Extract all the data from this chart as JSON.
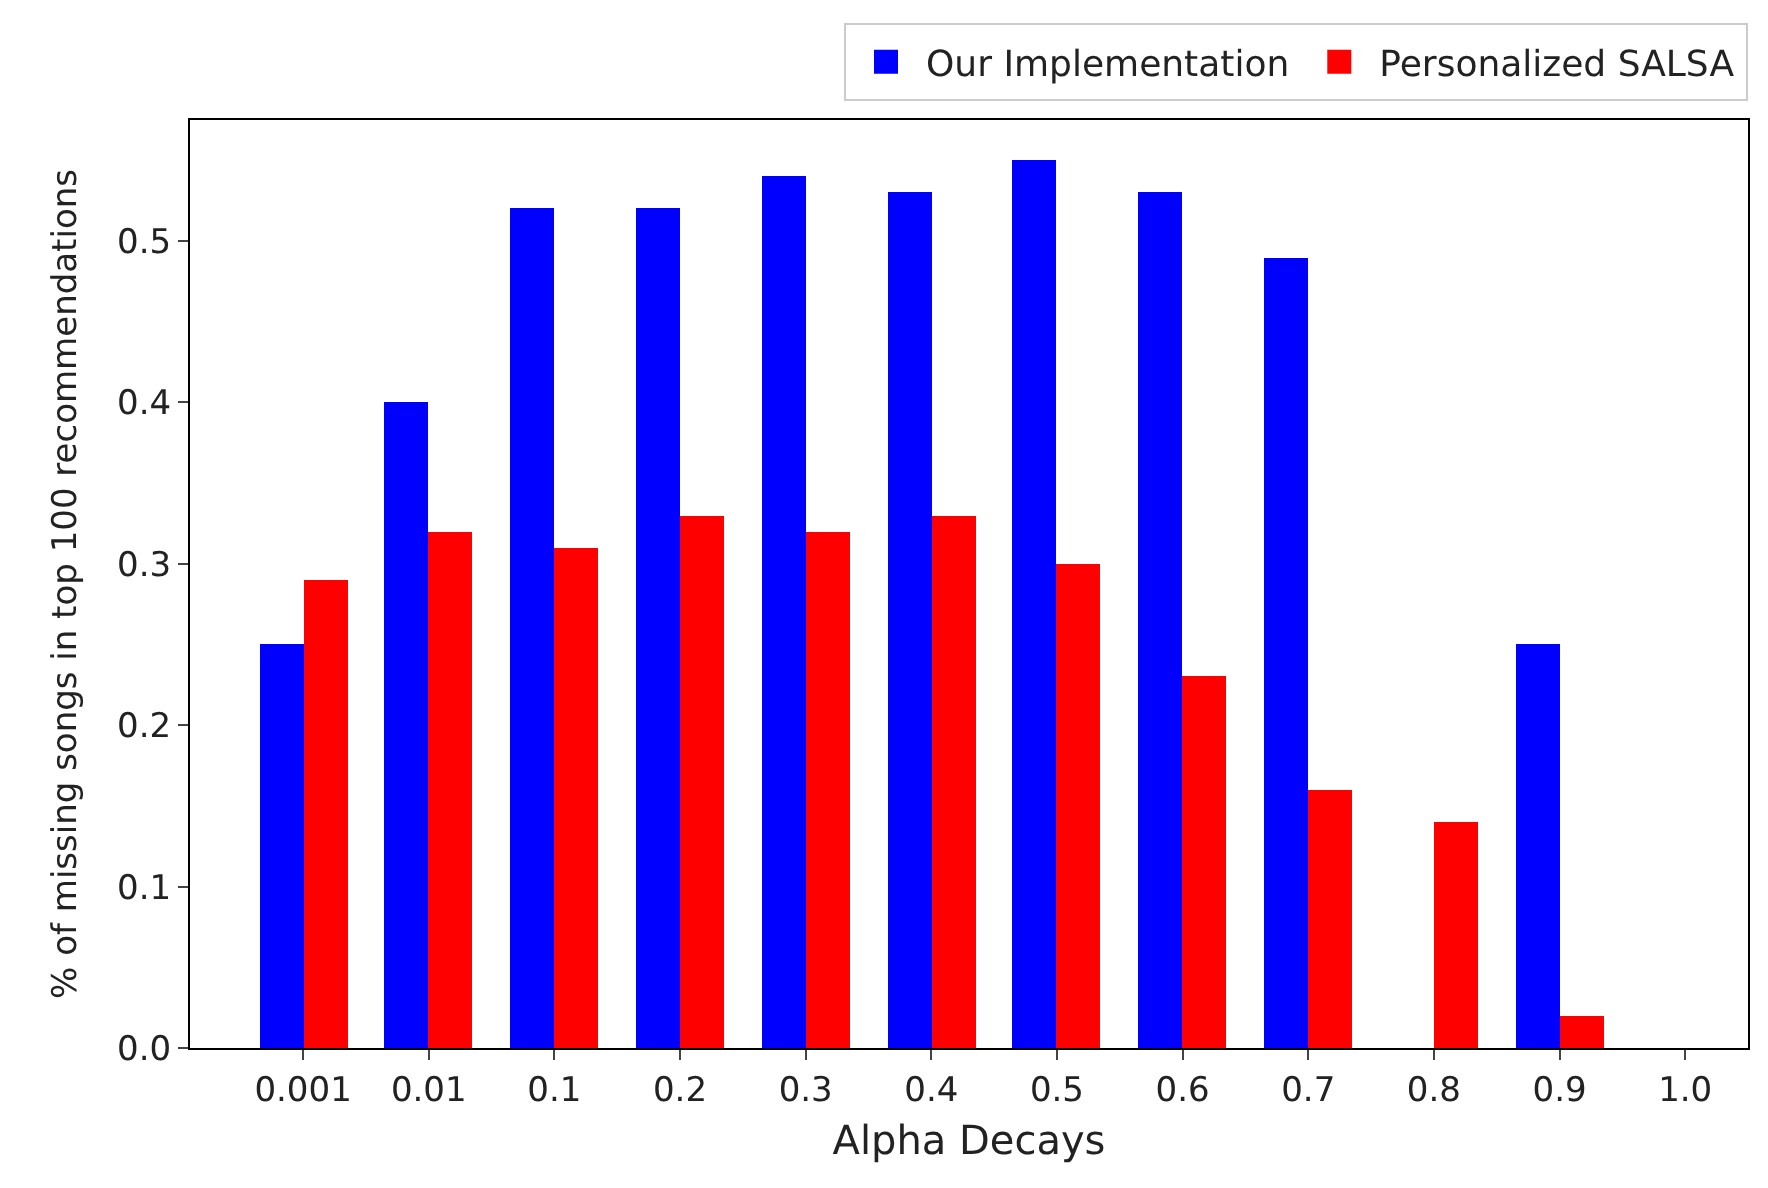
{
  "chart_data": {
    "type": "bar",
    "xlabel": "Alpha Decays",
    "ylabel": "% of missing songs in top 100 recommendations",
    "categories": [
      "0.001",
      "0.01",
      "0.1",
      "0.2",
      "0.3",
      "0.4",
      "0.5",
      "0.6",
      "0.7",
      "0.8",
      "0.9",
      "1.0"
    ],
    "series": [
      {
        "name": "Our Implementation",
        "color": "#0000ff",
        "values": [
          0.25,
          0.4,
          0.52,
          0.52,
          0.54,
          0.53,
          0.55,
          0.53,
          0.49,
          null,
          0.25,
          0
        ]
      },
      {
        "name": "Personalized SALSA",
        "color": "#ff0000",
        "values": [
          0.29,
          0.32,
          0.31,
          0.33,
          0.32,
          0.33,
          0.3,
          0.23,
          0.16,
          0.14,
          0.02,
          0
        ]
      }
    ],
    "ylim": [
      0,
      0.575
    ],
    "yticks": [
      {
        "value": 0,
        "label": "0.0"
      },
      0.1,
      0.2,
      0.3,
      0.4,
      0.5
    ],
    "legend": "top right"
  }
}
